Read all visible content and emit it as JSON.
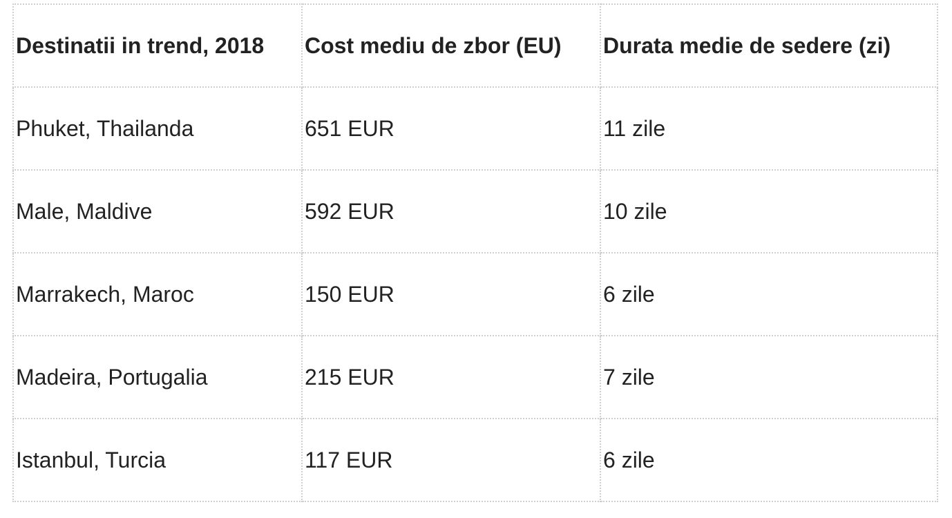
{
  "table": {
    "header": [
      "Destinatii in trend, 2018",
      "Cost mediu de zbor (EU)",
      "Durata medie de sedere (zi)"
    ],
    "rows": [
      [
        "Phuket, Thailanda",
        "651 EUR",
        "11 zile"
      ],
      [
        "Male, Maldive",
        "592 EUR",
        "10 zile"
      ],
      [
        "Marrakech, Maroc",
        "150 EUR",
        "6 zile"
      ],
      [
        "Madeira, Portugalia",
        "215 EUR",
        "7 zile"
      ],
      [
        "Istanbul, Turcia",
        "117 EUR",
        "6 zile"
      ]
    ]
  }
}
